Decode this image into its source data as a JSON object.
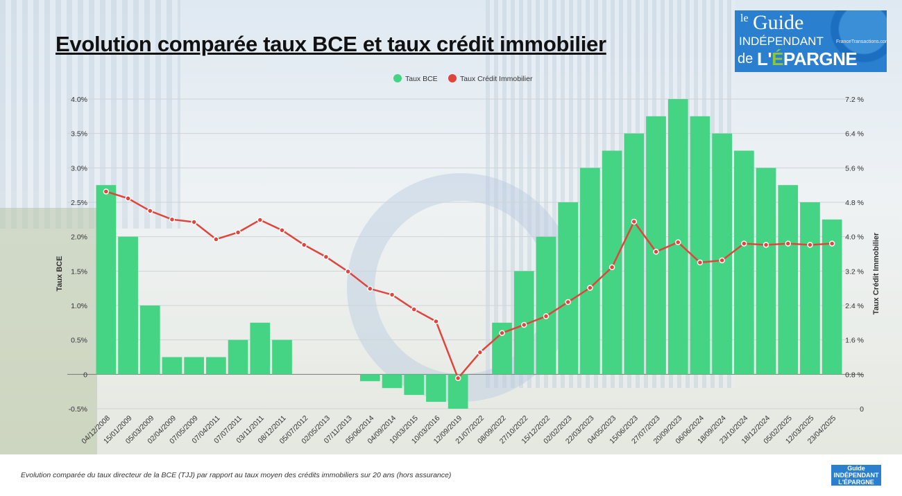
{
  "title": "Evolution comparée taux BCE et taux crédit immobilier",
  "caption": "Evolution comparée du taux directeur de la BCE (TJJ) par rapport au taux moyen des crédits immobiliers sur 20 ans (hors assurance)",
  "logo": {
    "text": "le Guide INDÉPENDANT de L'ÉPARGNE",
    "site": "FranceTransactions.com"
  },
  "chart_data": {
    "type": "bar+line",
    "categories": [
      "04/12/2008",
      "15/01/2009",
      "05/03/2009",
      "02/04/2009",
      "07/05/2009",
      "07/04/2011",
      "07/07/2011",
      "03/11/2011",
      "08/12/2011",
      "05/07/2012",
      "02/05/2013",
      "07/11/2013",
      "05/06/2014",
      "04/09/2014",
      "10/03/2015",
      "10/03/2016",
      "12/09/2019",
      "21/07/2022",
      "08/09/2022",
      "27/10/2022",
      "15/12/2022",
      "02/02/2023",
      "22/03/2023",
      "04/05/2023",
      "15/06/2023",
      "27/07/2023",
      "20/09/2023",
      "06/06/2024",
      "18/09/2024",
      "23/10/2024",
      "18/12/2024",
      "05/02/2025",
      "12/03/2025",
      "23/04/2025"
    ],
    "series": [
      {
        "name": "Taux BCE",
        "type": "bar",
        "axis": "left",
        "color": "#45d483",
        "values": [
          2.75,
          2.0,
          1.0,
          0.25,
          0.25,
          0.25,
          0.5,
          0.75,
          0.5,
          0,
          0,
          0,
          -0.1,
          -0.2,
          -0.3,
          -0.4,
          -0.5,
          0,
          0.75,
          1.5,
          2.0,
          2.5,
          3.0,
          3.25,
          3.5,
          3.75,
          4.0,
          3.75,
          3.5,
          3.25,
          3.0,
          2.75,
          2.5,
          2.25
        ]
      },
      {
        "name": "Taux Crédit Immobilier",
        "type": "line",
        "axis": "right",
        "color": "#e0443a",
        "values": [
          5.05,
          4.89,
          4.6,
          4.4,
          4.34,
          3.94,
          4.1,
          4.39,
          4.15,
          3.81,
          3.53,
          3.19,
          2.79,
          2.65,
          2.31,
          2.03,
          0.71,
          1.31,
          1.76,
          1.95,
          2.15,
          2.48,
          2.81,
          3.29,
          4.35,
          3.65,
          3.87,
          3.4,
          3.45,
          3.84,
          3.81,
          3.84,
          3.81,
          3.84
        ]
      }
    ],
    "left_axis": {
      "label": "Taux BCE",
      "range": [
        -0.5,
        4.0
      ],
      "ticks": [
        "-0.5%",
        "0",
        "0.5%",
        "1.0%",
        "1.5%",
        "2.0%",
        "2.5%",
        "3.0%",
        "3.5%",
        "4.0%"
      ]
    },
    "right_axis": {
      "label": "Taux Crédit Immobilier",
      "range": [
        0,
        7.2
      ],
      "ticks": [
        "0",
        "0.8 %",
        "1.6 %",
        "2.4 %",
        "3.2 %",
        "4.0 %",
        "4.8 %",
        "5.6 %",
        "6.4 %",
        "7.2 %"
      ]
    },
    "legend_position": "top-center",
    "grid": true
  }
}
